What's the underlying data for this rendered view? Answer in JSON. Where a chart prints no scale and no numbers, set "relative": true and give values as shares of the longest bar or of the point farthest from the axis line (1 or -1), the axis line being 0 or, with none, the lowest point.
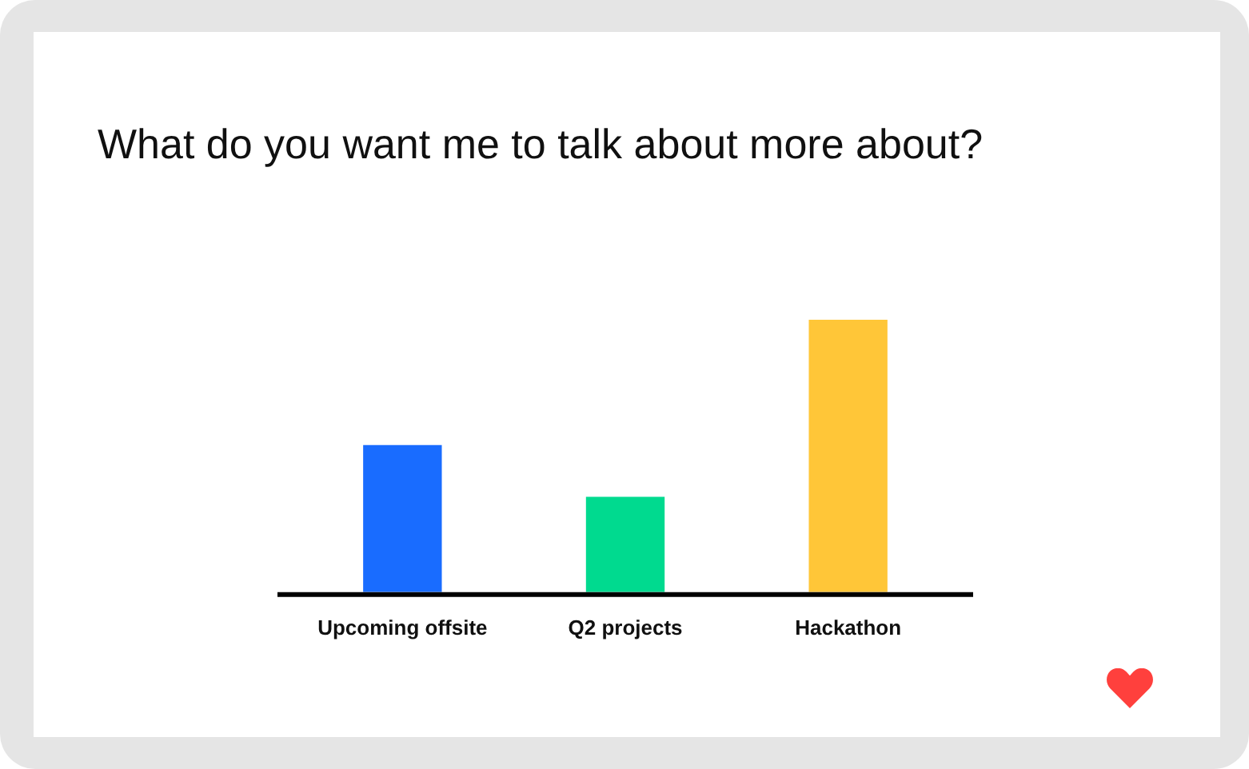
{
  "chart_data": {
    "type": "bar",
    "title": "What do you want me to talk about more about?",
    "categories": [
      "Upcoming offsite",
      "Q2 projects",
      "Hackathon"
    ],
    "values": [
      0.54,
      0.35,
      1
    ],
    "colors": [
      "#196cff",
      "#00da8f",
      "#ffc638"
    ],
    "relative": true
  }
}
